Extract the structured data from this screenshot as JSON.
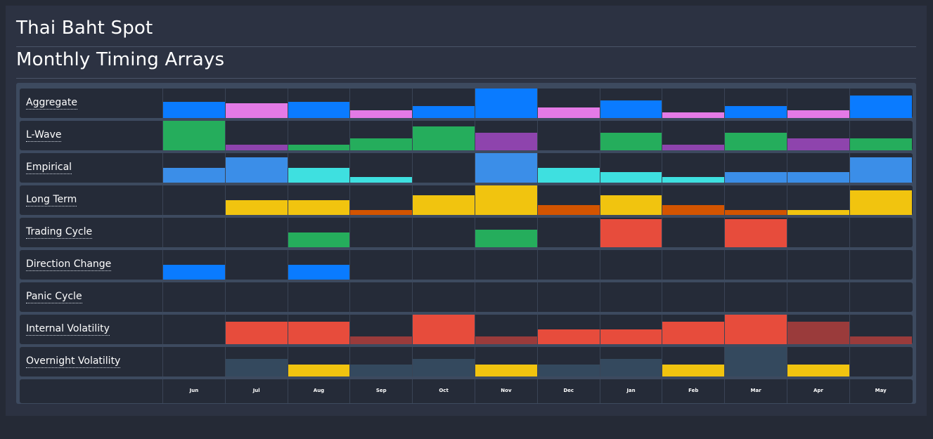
{
  "header": {
    "title": "Thai Baht Spot",
    "subtitle": "Monthly Timing Arrays"
  },
  "chart_data": {
    "type": "heatmap",
    "categories": [
      "Jun",
      "Jul",
      "Aug",
      "Sep",
      "Oct",
      "Nov",
      "Dec",
      "Jan",
      "Feb",
      "Mar",
      "Apr",
      "May"
    ],
    "ylim": [
      0,
      1
    ],
    "rows": [
      {
        "name": "Aggregate",
        "values": [
          0.55,
          0.5,
          0.55,
          0.25,
          0.4,
          1.0,
          0.35,
          0.6,
          0.2,
          0.4,
          0.25,
          0.75
        ],
        "colors": [
          "#0a7bff",
          "#e47ae6",
          "#0a7bff",
          "#e47ae6",
          "#0a7bff",
          "#0a7bff",
          "#e47ae6",
          "#0a7bff",
          "#e47ae6",
          "#0a7bff",
          "#e47ae6",
          "#0a7bff"
        ]
      },
      {
        "name": "L-Wave",
        "values": [
          1.0,
          0.2,
          0.2,
          0.4,
          0.8,
          0.6,
          0,
          0.6,
          0.2,
          0.6,
          0.4,
          0.4
        ],
        "colors": [
          "#25ad5c",
          "#8e44ad",
          "#25ad5c",
          "#25ad5c",
          "#25ad5c",
          "#8e44ad",
          "#25ad5c",
          "#25ad5c",
          "#8e44ad",
          "#25ad5c",
          "#8e44ad",
          "#25ad5c"
        ]
      },
      {
        "name": "Empirical",
        "values": [
          0.5,
          0.85,
          0.5,
          0.2,
          0,
          1.0,
          0.5,
          0.35,
          0.2,
          0.35,
          0.35,
          0.85
        ],
        "colors": [
          "#3b8ee8",
          "#3b8ee8",
          "#3ee0e0",
          "#3ee0e0",
          "#3ee0e0",
          "#3b8ee8",
          "#3ee0e0",
          "#3ee0e0",
          "#3ee0e0",
          "#3b8ee8",
          "#3b8ee8",
          "#3b8ee8"
        ]
      },
      {
        "name": "Long Term",
        "values": [
          0,
          0.5,
          0.5,
          0.17,
          0.67,
          1.0,
          0.33,
          0.67,
          0.33,
          0.17,
          0.17,
          0.83
        ],
        "colors": [
          "#f1c40f",
          "#f1c40f",
          "#f1c40f",
          "#d35400",
          "#f1c40f",
          "#f1c40f",
          "#d35400",
          "#f1c40f",
          "#d35400",
          "#d35400",
          "#f1c40f",
          "#f1c40f"
        ]
      },
      {
        "name": "Trading Cycle",
        "values": [
          0,
          0,
          0.5,
          0,
          0,
          0.6,
          0,
          0.95,
          0,
          0.95,
          0,
          0
        ],
        "colors": [
          "#25ad5c",
          "#25ad5c",
          "#25ad5c",
          "#25ad5c",
          "#25ad5c",
          "#25ad5c",
          "#e74c3c",
          "#e74c3c",
          "#e74c3c",
          "#e74c3c",
          "#e74c3c",
          "#e74c3c"
        ]
      },
      {
        "name": "Direction Change",
        "values": [
          0.5,
          0,
          0.5,
          0,
          0,
          0,
          0,
          0,
          0,
          0,
          0,
          0
        ],
        "colors": [
          "#0a7bff",
          "#0a7bff",
          "#0a7bff",
          "#0a7bff",
          "#0a7bff",
          "#0a7bff",
          "#0a7bff",
          "#0a7bff",
          "#0a7bff",
          "#0a7bff",
          "#0a7bff",
          "#0a7bff"
        ]
      },
      {
        "name": "Panic Cycle",
        "values": [
          0,
          0,
          0,
          0,
          0,
          0,
          0,
          0,
          0,
          0,
          0,
          0
        ],
        "colors": [
          "#e74c3c",
          "#e74c3c",
          "#e74c3c",
          "#e74c3c",
          "#e74c3c",
          "#e74c3c",
          "#e74c3c",
          "#e74c3c",
          "#e74c3c",
          "#e74c3c",
          "#e74c3c",
          "#e74c3c"
        ]
      },
      {
        "name": "Internal Volatility",
        "values": [
          0,
          0.75,
          0.75,
          0.25,
          1.0,
          0.25,
          0.5,
          0.5,
          0.75,
          1.0,
          0.75,
          0.25
        ],
        "colors": [
          "#e74c3c",
          "#e74c3c",
          "#e74c3c",
          "#9a3b3b",
          "#e74c3c",
          "#9a3b3b",
          "#e74c3c",
          "#e74c3c",
          "#e74c3c",
          "#e74c3c",
          "#9a3b3b",
          "#9a3b3b"
        ]
      },
      {
        "name": "Overnight Volatility",
        "values": [
          0,
          0.6,
          0.4,
          0.4,
          0.6,
          0.4,
          0.4,
          0.6,
          0.4,
          1.0,
          0.4,
          0
        ],
        "colors": [
          "#34495e",
          "#34495e",
          "#f1c40f",
          "#34495e",
          "#34495e",
          "#f1c40f",
          "#34495e",
          "#34495e",
          "#f1c40f",
          "#34495e",
          "#f1c40f",
          "#34495e"
        ]
      }
    ]
  }
}
